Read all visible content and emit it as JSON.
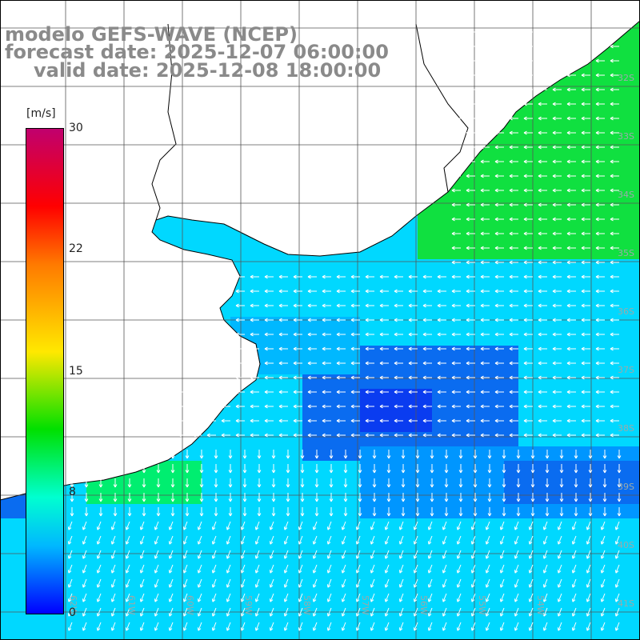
{
  "title": {
    "line1": "modelo GEFS-WAVE (NCEP)",
    "line2": "forecast date: 2025-12-07 06:00:00",
    "line3": "valid date: 2025-12-08 18:00:00"
  },
  "colorbar": {
    "unit_label": "[m/s]",
    "ticks": [
      "30",
      "22",
      "15",
      "8",
      "0"
    ],
    "colors": [
      "#0000ff",
      "#00b8ff",
      "#00ffd0",
      "#00e000",
      "#ffe800",
      "#ff7a00",
      "#ff0000",
      "#c0006e"
    ]
  },
  "map": {
    "lat_labels": [
      "32S",
      "33S",
      "34S",
      "35S",
      "36S",
      "37S",
      "38S",
      "39S",
      "40S",
      "41S"
    ],
    "lon_labels": [
      "62W",
      "61W",
      "60W",
      "59W",
      "58W",
      "57W",
      "56W",
      "55W",
      "54W"
    ],
    "ocean_base_color": "#00d8ff",
    "land_color": "#ffffff",
    "arrow_color": "#ffffff"
  }
}
